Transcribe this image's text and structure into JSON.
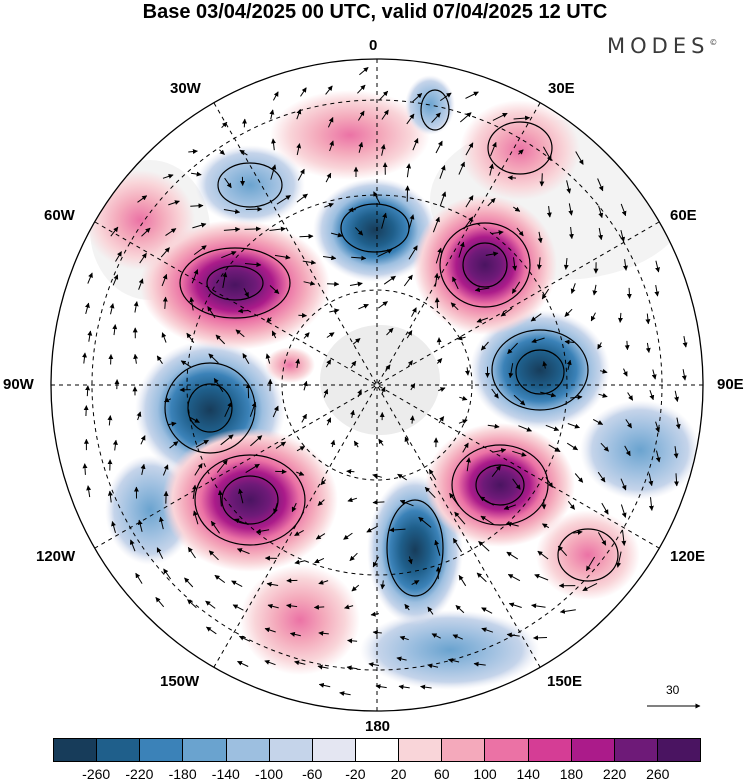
{
  "title": "Base 03/04/2025 00 UTC, valid 07/04/2025 12 UTC",
  "brand": {
    "name": "MODES",
    "mark": "©"
  },
  "longitude_labels": {
    "top": "0",
    "lon_30e": "30E",
    "lon_60e": "60E",
    "lon_90e": "90E",
    "lon_120e": "120E",
    "lon_150e": "150E",
    "bottom": "180",
    "lon_150w": "150W",
    "lon_120w": "120W",
    "lon_90w": "90W",
    "lon_60w": "60W",
    "lon_30w": "30W"
  },
  "reference_vector": {
    "label": "30"
  },
  "colorbar": {
    "ticks": [
      "-260",
      "-220",
      "-180",
      "-140",
      "-100",
      "-60",
      "-20",
      "20",
      "60",
      "100",
      "140",
      "180",
      "220",
      "260"
    ],
    "colors": [
      "#173c5a",
      "#1f5f8b",
      "#3b82b8",
      "#6aa3cf",
      "#9dbfe0",
      "#c5d4ea",
      "#e4e6f2",
      "#ffffff",
      "#f9d5d9",
      "#f4a9bb",
      "#eb72a5",
      "#d53d95",
      "#ab1b8a",
      "#6e1a78",
      "#4a1461"
    ]
  },
  "anomaly_centers": [
    {
      "sign": "negative",
      "region": "north Atlantic near 0",
      "intensity": -200
    },
    {
      "sign": "negative",
      "region": "Greenland sector",
      "intensity": -140
    },
    {
      "sign": "negative",
      "region": "90W sector",
      "intensity": -260
    },
    {
      "sign": "negative",
      "region": "Siberia near 90E",
      "intensity": -260
    },
    {
      "sign": "negative",
      "region": "near 180",
      "intensity": -260
    },
    {
      "sign": "positive",
      "region": "60W sector",
      "intensity": 260
    },
    {
      "sign": "positive",
      "region": "45E sector",
      "intensity": 260
    },
    {
      "sign": "positive",
      "region": "120W sector",
      "intensity": 260
    },
    {
      "sign": "positive",
      "region": "120E sector",
      "intensity": 260
    },
    {
      "sign": "positive",
      "region": "east Asia near 130E",
      "intensity": 180
    }
  ]
}
